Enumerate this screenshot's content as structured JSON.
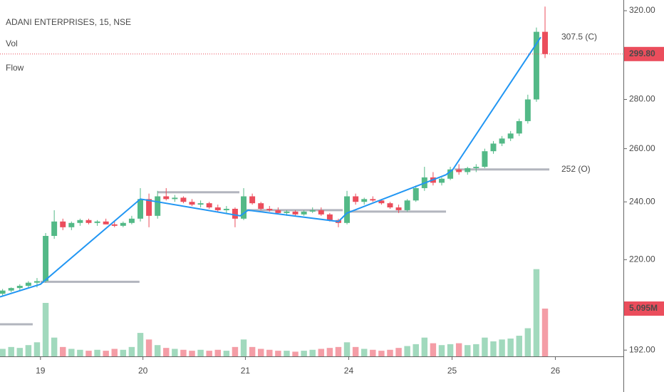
{
  "chart_data": {
    "type": "candlestick",
    "title": "ADANI ENTERPRISES, 15, NSE",
    "indicators": [
      "Vol",
      "Flow"
    ],
    "log_scale": true,
    "ylim": [
      190.2,
      325.2
    ],
    "xlim": [
      -0.3,
      72.1
    ],
    "yticks": [
      {
        "value": 320,
        "label": "320.00"
      },
      {
        "value": 280,
        "label": "280.00"
      },
      {
        "value": 260,
        "label": "260.00"
      },
      {
        "value": 240,
        "label": "240.00"
      },
      {
        "value": 220,
        "label": "220.00"
      },
      {
        "value": 192,
        "label": "192.00"
      }
    ],
    "xticks": [
      {
        "value": 4.4,
        "label": "19"
      },
      {
        "value": 16.3,
        "label": "20"
      },
      {
        "value": 28.2,
        "label": "21"
      },
      {
        "value": 40.2,
        "label": "24"
      },
      {
        "value": 52.2,
        "label": "25"
      },
      {
        "value": 64.2,
        "label": "26"
      }
    ],
    "up_color": "#53b987",
    "down_color": "#eb4d5c",
    "flow_color": "#2196f3",
    "level_color": "#b2b5be",
    "ohlc": [
      [
        209,
        210.5,
        208.5,
        210
      ],
      [
        210,
        211,
        209.5,
        210.8
      ],
      [
        210.8,
        212,
        210,
        211.5
      ],
      [
        211.5,
        213,
        211,
        212.5
      ],
      [
        212.5,
        214,
        211,
        213
      ],
      [
        213,
        229,
        212.5,
        228
      ],
      [
        228,
        237,
        227,
        233
      ],
      [
        233,
        234,
        230,
        231
      ],
      [
        231,
        233,
        230,
        232.5
      ],
      [
        232.5,
        234,
        231.5,
        233.5
      ],
      [
        233.5,
        234,
        232,
        232.5
      ],
      [
        232.5,
        233.5,
        231.5,
        233
      ],
      [
        233,
        234,
        232,
        232
      ],
      [
        232,
        233,
        231,
        231.5
      ],
      [
        231.5,
        233,
        231,
        232.5
      ],
      [
        232.5,
        235,
        232,
        234
      ],
      [
        234,
        245,
        233,
        241
      ],
      [
        241,
        243,
        231,
        235
      ],
      [
        235,
        244,
        234,
        242
      ],
      [
        242,
        245,
        240.5,
        241
      ],
      [
        241,
        242.5,
        240,
        241.5
      ],
      [
        241.5,
        242,
        239.5,
        240
      ],
      [
        240,
        241,
        238.5,
        239
      ],
      [
        239,
        240.5,
        238,
        239.5
      ],
      [
        239.5,
        240,
        237.5,
        238
      ],
      [
        238,
        239,
        236.5,
        237
      ],
      [
        237,
        238.5,
        236,
        237.5
      ],
      [
        237.5,
        238,
        231,
        234
      ],
      [
        234,
        245,
        233.5,
        242
      ],
      [
        242,
        243,
        239,
        239.5
      ],
      [
        239.5,
        240,
        237,
        237.5
      ],
      [
        237.5,
        238.5,
        236.5,
        237
      ],
      [
        237,
        238,
        235.5,
        236
      ],
      [
        236,
        237,
        235,
        236.5
      ],
      [
        236.5,
        237,
        235,
        235.5
      ],
      [
        235.5,
        237,
        235,
        236.5
      ],
      [
        236.5,
        238,
        236,
        237
      ],
      [
        237,
        238,
        235,
        235.5
      ],
      [
        235.5,
        236,
        233,
        233.5
      ],
      [
        233.5,
        234,
        231,
        232.5
      ],
      [
        232.5,
        244,
        232,
        242
      ],
      [
        242,
        243,
        239,
        240
      ],
      [
        240,
        241.5,
        239,
        241
      ],
      [
        241,
        242,
        240,
        240.5
      ],
      [
        240.5,
        241,
        239,
        239.5
      ],
      [
        239.5,
        240,
        237.5,
        238
      ],
      [
        238,
        239,
        236,
        237
      ],
      [
        237,
        241,
        236.5,
        240.5
      ],
      [
        240.5,
        246,
        240,
        245
      ],
      [
        245,
        253,
        244,
        249
      ],
      [
        249,
        251,
        246,
        247
      ],
      [
        247,
        249,
        246,
        248.5
      ],
      [
        248.5,
        253,
        248,
        252
      ],
      [
        252,
        254,
        250,
        251
      ],
      [
        251,
        253,
        250,
        252.5
      ],
      [
        252.5,
        254,
        251,
        253
      ],
      [
        253,
        260,
        252.5,
        259
      ],
      [
        259,
        263,
        258,
        262
      ],
      [
        262,
        265,
        261,
        264
      ],
      [
        264,
        267,
        263,
        266
      ],
      [
        266,
        272,
        265,
        271
      ],
      [
        271,
        282,
        270,
        280
      ],
      [
        280,
        312,
        279,
        310
      ],
      [
        310,
        322,
        298,
        299.8
      ]
    ],
    "volume": [
      0.8,
      1.0,
      0.9,
      1.2,
      1.5,
      5.7,
      2.0,
      1.0,
      0.8,
      0.7,
      0.6,
      0.7,
      0.6,
      0.8,
      0.7,
      1.0,
      2.5,
      1.8,
      1.2,
      0.9,
      0.8,
      0.7,
      0.6,
      0.7,
      0.6,
      0.7,
      0.6,
      1.0,
      1.8,
      1.0,
      0.8,
      0.7,
      0.6,
      0.6,
      0.5,
      0.6,
      0.7,
      0.8,
      0.9,
      1.0,
      1.5,
      1.0,
      0.8,
      0.7,
      0.6,
      0.7,
      0.9,
      1.1,
      1.3,
      2.0,
      1.4,
      1.2,
      1.3,
      1.4,
      1.2,
      1.3,
      2.0,
      1.6,
      1.8,
      1.9,
      2.2,
      3.0,
      9.3,
      5.095
    ],
    "volume_ylim": [
      0,
      9.5
    ],
    "flow": [
      [
        -0.3,
        208
      ],
      [
        4.4,
        212
      ],
      [
        16,
        241
      ],
      [
        18,
        240
      ],
      [
        27.6,
        235
      ],
      [
        28.5,
        237
      ],
      [
        39,
        233
      ],
      [
        40,
        236
      ],
      [
        51.5,
        250
      ],
      [
        52.3,
        252
      ],
      [
        62.5,
        307.5
      ]
    ],
    "levels": [
      [
        -0.3,
        3.5,
        199.6
      ],
      [
        4.4,
        15.9,
        212.8
      ],
      [
        18,
        27.5,
        243.5
      ],
      [
        28,
        39.5,
        237
      ],
      [
        40,
        51.5,
        236.5
      ],
      [
        52.5,
        63.5,
        252
      ]
    ],
    "annotations": [
      {
        "text": "307.5 (C)",
        "value": 307.5
      },
      {
        "text": "252 (O)",
        "value": 252
      }
    ],
    "last_price": 299.8,
    "last_price_label": "299.80",
    "last_volume_label": "5.095M"
  }
}
